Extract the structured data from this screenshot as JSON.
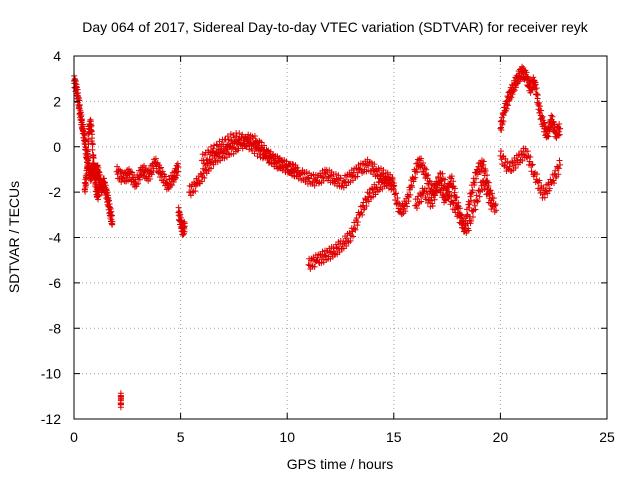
{
  "chart_data": {
    "type": "scatter",
    "title": "Day 064 of 2017, Sidereal Day-to-day VTEC variation (SDTVAR) for receiver reyk",
    "xlabel": "GPS time / hours",
    "ylabel": "SDTVAR / TECUs",
    "xlim": [
      0,
      25
    ],
    "ylim": [
      -12,
      4
    ],
    "xticks": [
      "0",
      "5",
      "10",
      "15",
      "20",
      "25"
    ],
    "yticks": [
      "4",
      "2",
      "0",
      "-2",
      "-4",
      "-6",
      "-8",
      "-10",
      "-12"
    ],
    "grid": true,
    "marker": "+",
    "color": "#e00000",
    "series": [
      {
        "name": "trace-early-decay",
        "x": [
          0.0,
          0.1,
          0.2,
          0.3,
          0.4,
          0.5,
          0.6,
          0.7,
          0.8,
          0.9,
          1.0,
          1.1,
          1.2,
          1.3,
          1.4,
          1.5,
          1.6,
          1.7,
          1.8
        ],
        "y": [
          2.9,
          2.6,
          2.1,
          1.4,
          0.9,
          0.3,
          -0.5,
          -1.0,
          -1.3,
          -0.9,
          -1.2,
          -1.0,
          -1.4,
          -1.8,
          -1.6,
          -2.0,
          -2.4,
          -2.9,
          -3.3
        ]
      },
      {
        "name": "trace-side-branch",
        "x": [
          0.5,
          0.6,
          0.7,
          0.8,
          0.9,
          1.0,
          1.1,
          1.2
        ],
        "y": [
          -1.9,
          -1.2,
          0.8,
          1.0,
          -0.4,
          -1.6,
          -2.2,
          -1.8
        ]
      },
      {
        "name": "trace-morning",
        "x": [
          2.0,
          2.3,
          2.6,
          2.9,
          3.2,
          3.5,
          3.8,
          4.1,
          4.4,
          4.7,
          4.9
        ],
        "y": [
          -1.1,
          -1.4,
          -1.2,
          -1.6,
          -1.0,
          -1.3,
          -0.7,
          -1.2,
          -1.7,
          -1.3,
          -0.9
        ]
      },
      {
        "name": "trace-dip",
        "x": [
          4.9,
          5.0,
          5.1,
          5.2
        ],
        "y": [
          -2.9,
          -3.3,
          -3.7,
          -3.5
        ]
      },
      {
        "name": "trace-daytime",
        "x": [
          5.4,
          5.8,
          6.2,
          6.6,
          7.0,
          7.4,
          7.8,
          8.2,
          8.6,
          9.0,
          9.4,
          9.8,
          10.2,
          10.6,
          11.0,
          11.4,
          11.8,
          12.2,
          12.6,
          13.0,
          13.4,
          13.8,
          14.2,
          14.6,
          15.0
        ],
        "y": [
          -2.0,
          -1.6,
          -1.0,
          -0.5,
          -0.3,
          -0.1,
          0.1,
          0.3,
          0.2,
          -0.3,
          -0.6,
          -0.8,
          -1.0,
          -1.2,
          -1.4,
          -1.5,
          -1.2,
          -1.4,
          -1.6,
          -1.3,
          -1.0,
          -0.8,
          -1.1,
          -1.3,
          -1.6
        ]
      },
      {
        "name": "trace-daytime-upper",
        "x": [
          6.0,
          6.5,
          7.0,
          7.5,
          8.0,
          8.5,
          9.0,
          9.5,
          10.0,
          10.5
        ],
        "y": [
          -0.6,
          -0.2,
          0.1,
          0.4,
          0.3,
          -0.1,
          -0.4,
          -0.7,
          -0.9,
          -1.1
        ]
      },
      {
        "name": "trace-night-rise",
        "x": [
          11.0,
          11.4,
          11.8,
          12.2,
          12.6,
          13.0,
          13.4,
          13.8,
          14.2,
          14.6,
          15.0
        ],
        "y": [
          -5.2,
          -5.0,
          -4.8,
          -4.6,
          -4.3,
          -3.9,
          -3.0,
          -2.2,
          -1.8,
          -1.5,
          -1.7
        ]
      },
      {
        "name": "trace-evening",
        "x": [
          15.0,
          15.3,
          15.6,
          15.9,
          16.2,
          16.5,
          16.8,
          17.1,
          17.4,
          17.7,
          18.0,
          18.3,
          18.6,
          18.9,
          19.2,
          19.5,
          19.8
        ],
        "y": [
          -1.9,
          -2.9,
          -2.5,
          -1.4,
          -0.6,
          -1.2,
          -2.0,
          -1.6,
          -2.3,
          -1.4,
          -2.6,
          -3.6,
          -2.2,
          -1.0,
          -0.8,
          -2.0,
          -2.8
        ]
      },
      {
        "name": "trace-evening-lower",
        "x": [
          16.0,
          16.4,
          16.8,
          17.2,
          17.6,
          18.0,
          18.4,
          18.8,
          19.2,
          19.6
        ],
        "y": [
          -2.6,
          -2.0,
          -2.5,
          -1.2,
          -2.2,
          -2.9,
          -3.8,
          -2.6,
          -1.5,
          -2.6
        ]
      },
      {
        "name": "trace-late-peak",
        "x": [
          20.0,
          20.2,
          20.4,
          20.6,
          20.8,
          21.0,
          21.2,
          21.4,
          21.6,
          21.8,
          22.0,
          22.2,
          22.4,
          22.6,
          22.8
        ],
        "y": [
          0.8,
          1.6,
          2.2,
          2.6,
          3.0,
          3.3,
          3.1,
          2.6,
          2.9,
          1.8,
          1.0,
          0.5,
          1.2,
          0.6,
          0.8
        ]
      },
      {
        "name": "trace-late-lower",
        "x": [
          20.0,
          20.4,
          20.8,
          21.2,
          21.6,
          22.0,
          22.4,
          22.8
        ],
        "y": [
          -0.4,
          -1.0,
          -0.6,
          -0.2,
          -1.2,
          -2.1,
          -1.6,
          -0.8
        ]
      },
      {
        "name": "outliers",
        "x": [
          2.2,
          2.2
        ],
        "y": [
          -11.1,
          -11.3
        ]
      }
    ]
  }
}
